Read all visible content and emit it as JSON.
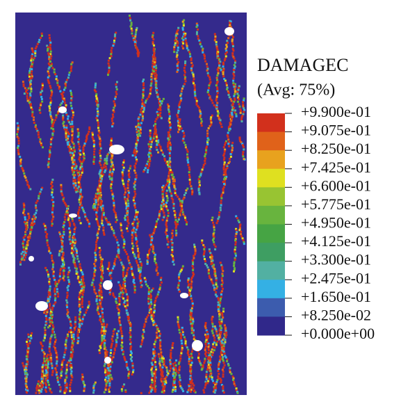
{
  "legend": {
    "title": "DAMAGEC",
    "subtitle": "(Avg: 75%)",
    "levels": [
      "+9.900e-01",
      "+9.075e-01",
      "+8.250e-01",
      "+7.425e-01",
      "+6.600e-01",
      "+5.775e-01",
      "+4.950e-01",
      "+4.125e-01",
      "+3.300e-01",
      "+2.475e-01",
      "+1.650e-01",
      "+8.250e-02",
      "+0.000e+00"
    ],
    "colors": [
      "#d2301c",
      "#e0621a",
      "#e8a21e",
      "#dfe020",
      "#98c432",
      "#68b43e",
      "#46a444",
      "#3e9e62",
      "#52b0a2",
      "#34b0e4",
      "#3c5cae",
      "#30288a"
    ]
  }
}
